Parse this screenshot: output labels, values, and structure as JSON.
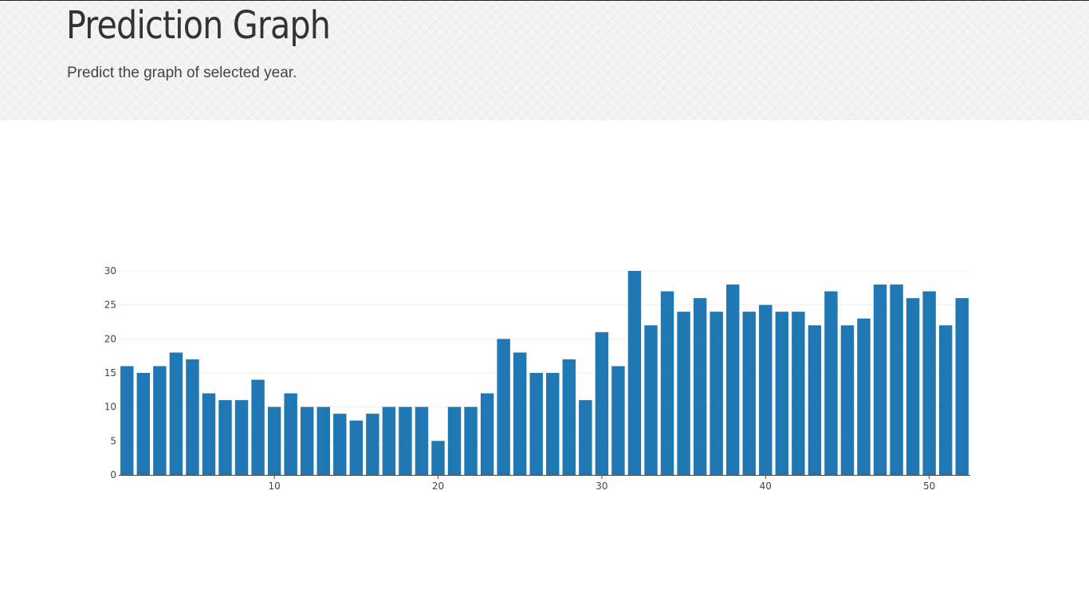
{
  "header": {
    "title": "Prediction Graph",
    "subtitle": "Predict the graph of selected year."
  },
  "colors": {
    "bar": "#1f77b4",
    "grid": "#eeeeee",
    "axis": "#444444",
    "header_bg": "#f2f2f2"
  },
  "chart_data": {
    "type": "bar",
    "x": [
      1,
      2,
      3,
      4,
      5,
      6,
      7,
      8,
      9,
      10,
      11,
      12,
      13,
      14,
      15,
      16,
      17,
      18,
      19,
      20,
      21,
      22,
      23,
      24,
      25,
      26,
      27,
      28,
      29,
      30,
      31,
      32,
      33,
      34,
      35,
      36,
      37,
      38,
      39,
      40,
      41,
      42,
      43,
      44,
      45,
      46,
      47,
      48,
      49,
      50,
      51,
      52
    ],
    "values": [
      16,
      15,
      16,
      18,
      17,
      12,
      11,
      11,
      14,
      10,
      12,
      10,
      10,
      9,
      8,
      9,
      10,
      10,
      10,
      5,
      10,
      10,
      12,
      20,
      18,
      15,
      15,
      17,
      11,
      21,
      16,
      30,
      22,
      27,
      24,
      26,
      24,
      28,
      24,
      25,
      24,
      24,
      22,
      27,
      22,
      23,
      28,
      28,
      26,
      27,
      22,
      26
    ],
    "xlim": [
      0.5,
      52.5
    ],
    "ylim": [
      0,
      30
    ],
    "xticks": [
      10,
      20,
      30,
      40,
      50
    ],
    "yticks": [
      0,
      5,
      10,
      15,
      20,
      25,
      30
    ],
    "grid": true,
    "legend": false,
    "title": "",
    "xlabel": "",
    "ylabel": ""
  }
}
